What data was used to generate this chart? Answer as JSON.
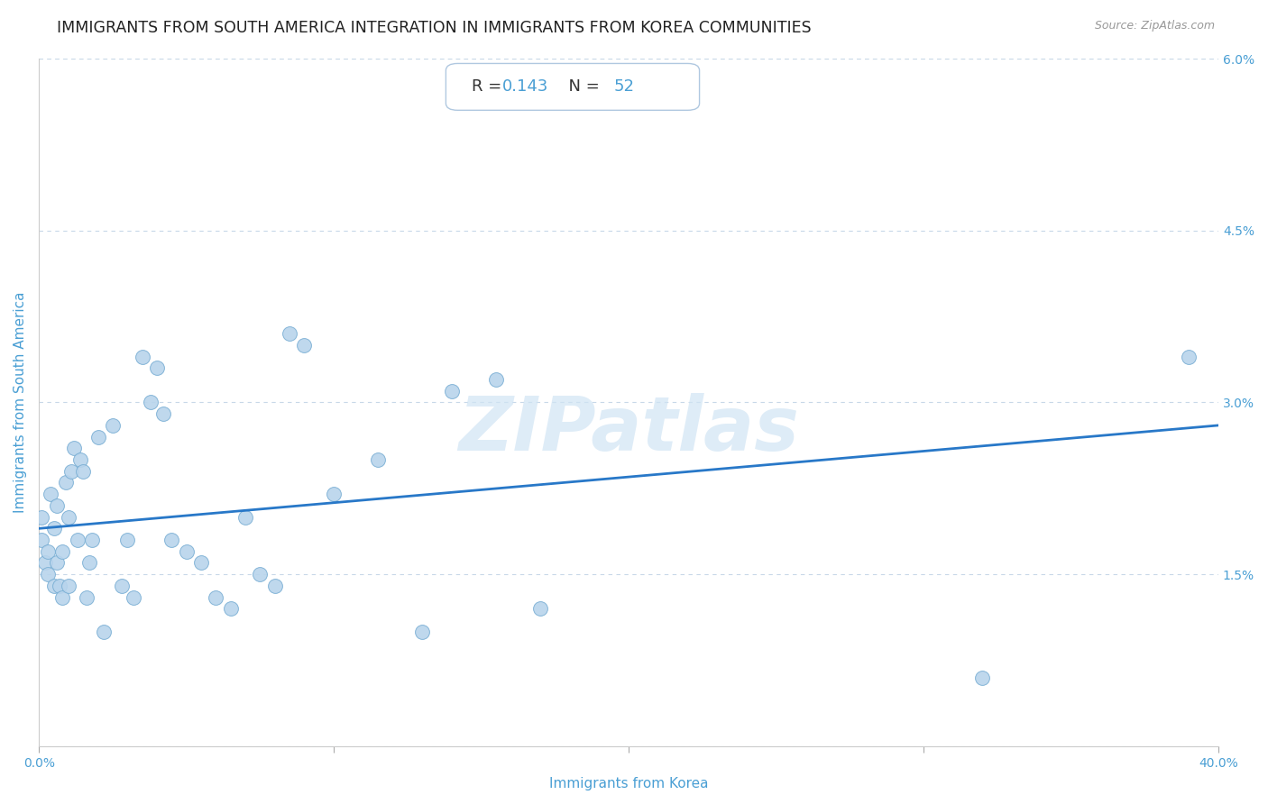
{
  "title": "IMMIGRANTS FROM SOUTH AMERICA INTEGRATION IN IMMIGRANTS FROM KOREA COMMUNITIES",
  "source": "Source: ZipAtlas.com",
  "xlabel": "Immigrants from Korea",
  "ylabel": "Immigrants from South America",
  "R": 0.143,
  "N": 52,
  "xlim": [
    0.0,
    0.4
  ],
  "ylim": [
    0.0,
    0.06
  ],
  "scatter_color": "#b8d4ec",
  "scatter_edge_color": "#7aafd4",
  "line_color": "#2878c8",
  "tick_color": "#4a9fd4",
  "label_color": "#4a9fd4",
  "background_color": "#ffffff",
  "grid_color": "#c8d8e8",
  "watermark_color": "#d0e4f4",
  "points_x": [
    0.001,
    0.001,
    0.002,
    0.003,
    0.003,
    0.004,
    0.005,
    0.005,
    0.006,
    0.006,
    0.007,
    0.008,
    0.008,
    0.009,
    0.01,
    0.01,
    0.011,
    0.012,
    0.013,
    0.014,
    0.015,
    0.016,
    0.017,
    0.018,
    0.02,
    0.022,
    0.025,
    0.028,
    0.03,
    0.032,
    0.035,
    0.038,
    0.04,
    0.042,
    0.045,
    0.05,
    0.055,
    0.06,
    0.065,
    0.07,
    0.075,
    0.08,
    0.085,
    0.09,
    0.1,
    0.115,
    0.13,
    0.14,
    0.155,
    0.17,
    0.32,
    0.39
  ],
  "points_y": [
    0.02,
    0.018,
    0.016,
    0.017,
    0.015,
    0.022,
    0.019,
    0.014,
    0.021,
    0.016,
    0.014,
    0.017,
    0.013,
    0.023,
    0.02,
    0.014,
    0.024,
    0.026,
    0.018,
    0.025,
    0.024,
    0.013,
    0.016,
    0.018,
    0.027,
    0.01,
    0.028,
    0.014,
    0.018,
    0.013,
    0.034,
    0.03,
    0.033,
    0.029,
    0.018,
    0.017,
    0.016,
    0.013,
    0.012,
    0.02,
    0.015,
    0.014,
    0.036,
    0.035,
    0.022,
    0.025,
    0.01,
    0.031,
    0.032,
    0.012,
    0.006,
    0.034
  ],
  "regression_x0": 0.0,
  "regression_x1": 0.4,
  "regression_y0": 0.019,
  "regression_y1": 0.028,
  "title_fontsize": 12.5,
  "label_fontsize": 11,
  "tick_fontsize": 10,
  "annot_fontsize": 13,
  "source_fontsize": 9,
  "watermark": "ZIPatlas"
}
